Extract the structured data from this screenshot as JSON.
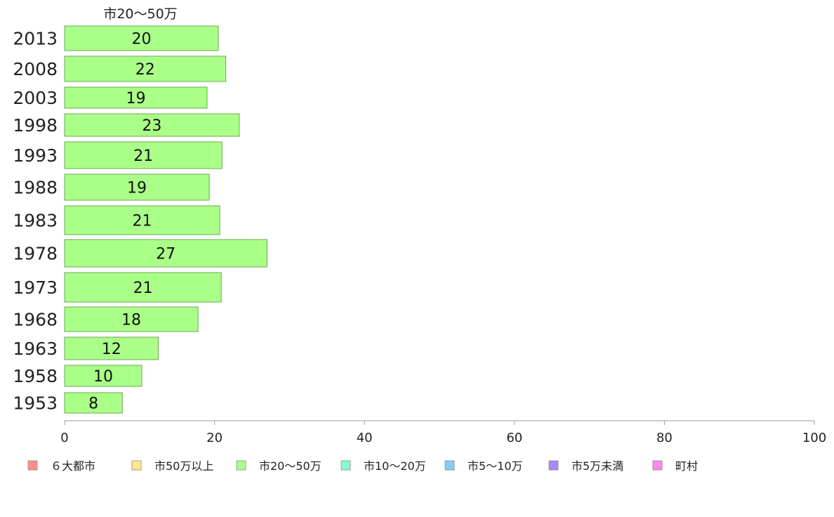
{
  "chart_data": {
    "type": "bar",
    "orientation": "horizontal",
    "column_title": "市20～50万",
    "categories": [
      "2013",
      "2008",
      "2003",
      "1998",
      "1993",
      "1988",
      "1983",
      "1978",
      "1973",
      "1968",
      "1963",
      "1958",
      "1953"
    ],
    "series": [
      {
        "name": "市20～50万",
        "color": "#aaff88",
        "values": [
          20.5,
          21.5,
          19,
          23.3,
          21,
          19.3,
          20.7,
          27,
          20.9,
          17.8,
          12.5,
          10.3,
          7.7
        ],
        "labels": [
          "20",
          "22",
          "19",
          "23",
          "21",
          "19",
          "21",
          "27",
          "21",
          "18",
          "12",
          "10",
          "8"
        ]
      }
    ],
    "xlim": [
      0,
      100
    ],
    "x_ticks": [
      "0",
      "20",
      "40",
      "60",
      "80",
      "100"
    ],
    "grid": false,
    "legend": {
      "placement": "bottom",
      "items": [
        {
          "label": "６大都市",
          "color": "#ff8c8c"
        },
        {
          "label": "市50万以上",
          "color": "#ffe88c"
        },
        {
          "label": "市20～50万",
          "color": "#aaff88"
        },
        {
          "label": "市10～20万",
          "color": "#88ffcc"
        },
        {
          "label": "市5～10万",
          "color": "#88ccff"
        },
        {
          "label": "市5万未満",
          "color": "#aa88ff"
        },
        {
          "label": "町村",
          "color": "#ff88ee"
        }
      ]
    }
  }
}
